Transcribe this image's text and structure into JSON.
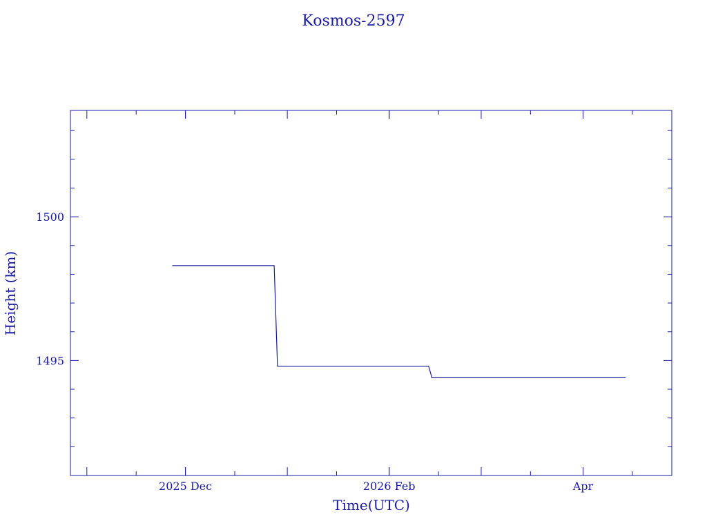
{
  "chart_data": {
    "type": "line",
    "title": "Kosmos-2597",
    "xlabel": "Time(UTC)",
    "ylabel": "Height (km)",
    "x_ticks": [
      {
        "date": "2025-12-01",
        "label": "2025 Dec"
      },
      {
        "date": "2026-02-01",
        "label": "2026 Feb"
      },
      {
        "date": "2026-04-01",
        "label": "Apr"
      }
    ],
    "y_ticks": [
      {
        "value": 1495,
        "label": "1495"
      },
      {
        "value": 1500,
        "label": "1500"
      }
    ],
    "xlim": [
      "2025-10-27",
      "2026-04-28"
    ],
    "ylim": [
      1491,
      1503.7
    ],
    "grid": false,
    "color": "#1a1aa0",
    "series": [
      {
        "points": [
          {
            "x": "2025-11-27",
            "y": 1498.3
          },
          {
            "x": "2025-12-28",
            "y": 1498.3
          },
          {
            "x": "2025-12-29",
            "y": 1494.8
          },
          {
            "x": "2026-02-13",
            "y": 1494.8
          },
          {
            "x": "2026-02-14",
            "y": 1494.4
          },
          {
            "x": "2026-04-14",
            "y": 1494.4
          }
        ]
      }
    ]
  }
}
